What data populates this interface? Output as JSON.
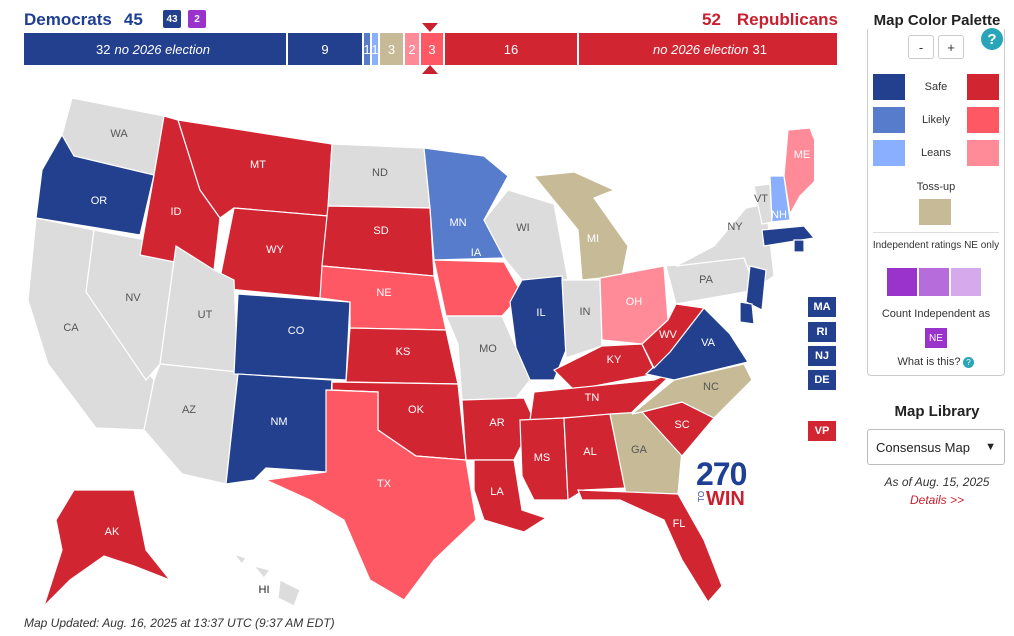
{
  "header": {
    "dem_label": "Democrats",
    "dem_total": "45",
    "dem_badge": "43",
    "ind_badge": "2",
    "rep_total": "52",
    "rep_label": "Republicans"
  },
  "bar": {
    "segments": [
      {
        "label": "32 no 2026 election",
        "num": "32",
        "note": "no 2026 election",
        "color": "#23408e"
      },
      {
        "label": "9",
        "num": "9",
        "color": "#23408e"
      },
      {
        "label": "1",
        "num": "1",
        "color": "#577ccc"
      },
      {
        "label": "1",
        "num": "1",
        "color": "#8aafff"
      },
      {
        "label": "3",
        "num": "3",
        "color": "#c7bb97"
      },
      {
        "label": "2",
        "num": "2",
        "color": "#ff8b98"
      },
      {
        "label": "3",
        "num": "3",
        "color": "#ff5865"
      },
      {
        "label": "16",
        "num": "16",
        "color": "#d22532"
      },
      {
        "label": "no 2026 election 31",
        "num": "31",
        "note": "no 2026 election",
        "color": "#d22532"
      }
    ]
  },
  "colors": {
    "safe_d": "#23408e",
    "likely_d": "#577ccc",
    "leans_d": "#8aafff",
    "tossup": "#c7bb97",
    "leans_r": "#ff8b98",
    "likely_r": "#ff5865",
    "safe_r": "#d22532",
    "none": "#dcdcdc",
    "ind_safe": "#9933cc",
    "ind_likely": "#b66ddb",
    "ind_leans": "#d5a9ec"
  },
  "map_states": [
    "WA",
    "OR",
    "CA",
    "NV",
    "ID",
    "MT",
    "WY",
    "UT",
    "AZ",
    "CO",
    "NM",
    "ND",
    "SD",
    "NE",
    "KS",
    "OK",
    "TX",
    "MN",
    "IA",
    "MO",
    "AR",
    "LA",
    "WI",
    "IL",
    "MI",
    "IN",
    "OH",
    "KY",
    "TN",
    "MS",
    "AL",
    "GA",
    "FL",
    "SC",
    "NC",
    "VA",
    "WV",
    "PA",
    "NY",
    "VT",
    "NH",
    "ME",
    "NJ",
    "DE",
    "MA",
    "RI",
    "AK",
    "HI"
  ],
  "districts": [
    "MA",
    "RI",
    "NJ",
    "DE",
    "VP"
  ],
  "logo": {
    "num": "270",
    "to": "TO",
    "win": "WIN"
  },
  "updated": "Map Updated: Aug. 16, 2025 at 13:37 UTC (9:37 AM EDT)",
  "palette": {
    "title": "Map Color Palette",
    "zoom_out": "-",
    "zoom_in": "+",
    "help": "?",
    "safe": "Safe",
    "likely": "Likely",
    "leans": "Leans",
    "tossup": "Toss-up",
    "ind_note": "Independent ratings NE only",
    "count_ind": "Count Independent as",
    "ne": "NE",
    "what": "What is this?",
    "what_icon": "?"
  },
  "library": {
    "title": "Map Library",
    "selected": "Consensus Map",
    "as_of": "As of Aug. 15, 2025",
    "details": "Details >>"
  }
}
